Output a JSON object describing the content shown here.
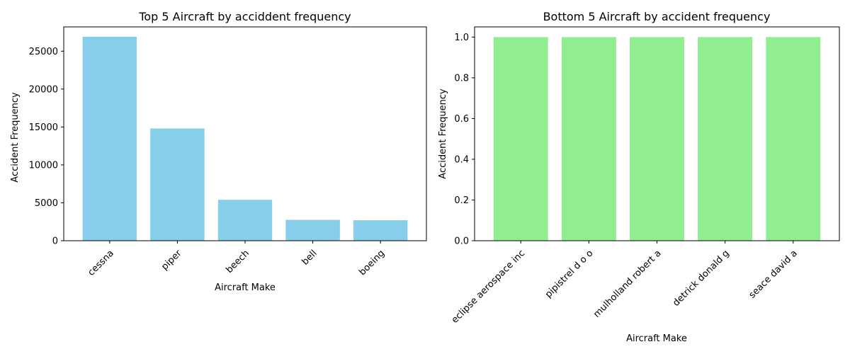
{
  "chart_data": [
    {
      "type": "bar",
      "title": "Top 5 Aircraft by acciddent frequency",
      "xlabel": "Aircraft Make",
      "ylabel": "Accident Frequency",
      "categories": [
        "cessna",
        "piper",
        "beech",
        "bell",
        "boeing"
      ],
      "values": [
        26900,
        14800,
        5400,
        2750,
        2700
      ],
      "ylim": [
        0,
        28200
      ],
      "yticks": [
        0,
        5000,
        10000,
        15000,
        20000,
        25000
      ],
      "ytick_labels": [
        "0",
        "5000",
        "10000",
        "15000",
        "20000",
        "25000"
      ],
      "bar_color": "#87ceeb",
      "x_tick_rotation": 45,
      "grid": false
    },
    {
      "type": "bar",
      "title": "Bottom 5 Aircraft by accident frequency",
      "xlabel": "Aircraft Make",
      "ylabel": "Accident Frequency",
      "categories": [
        "eclipse aerospace inc",
        "pipistrel d o o",
        "mulholland robert a",
        "detrick donald g",
        "seace david a"
      ],
      "values": [
        1,
        1,
        1,
        1,
        1
      ],
      "ylim": [
        0,
        1.05
      ],
      "yticks": [
        0,
        0.2,
        0.4,
        0.6,
        0.8,
        1.0
      ],
      "ytick_labels": [
        "0.0",
        "0.2",
        "0.4",
        "0.6",
        "0.8",
        "1.0"
      ],
      "bar_color": "#90ee90",
      "x_tick_rotation": 45,
      "grid": false
    }
  ]
}
